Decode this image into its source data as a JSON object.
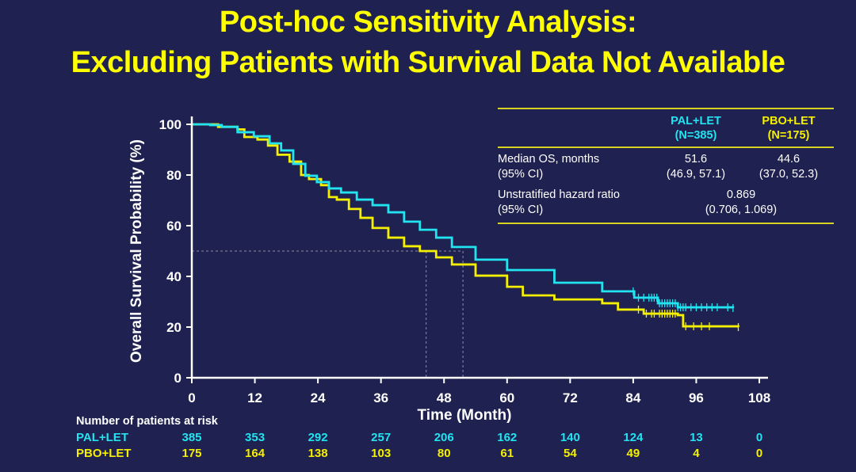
{
  "title": {
    "line1": "Post-hoc Sensitivity Analysis:",
    "line2": "Excluding Patients with Survival Data Not Available"
  },
  "colors": {
    "background": "#1f2150",
    "title": "#ffff00",
    "pal_let": "#22e4f0",
    "pbo_let": "#f5f000",
    "axis": "#ffffff",
    "table_rule": "#d8d220",
    "reference_line": "#8c8ca8"
  },
  "stats_table": {
    "headers": [
      {
        "arm": "PAL+LET",
        "n": "(N=385)"
      },
      {
        "arm": "PBO+LET",
        "n": "(N=175)"
      }
    ],
    "median_os": {
      "label": "Median OS, months",
      "sublabel": "(95% CI)",
      "pal_let": {
        "value": "51.6",
        "ci": "(46.9, 57.1)"
      },
      "pbo_let": {
        "value": "44.6",
        "ci": "(37.0, 52.3)"
      }
    },
    "hazard_ratio": {
      "label": "Unstratified hazard ratio",
      "sublabel": "(95% CI)",
      "value": "0.869",
      "ci": "(0.706, 1.069)"
    }
  },
  "risk_table": {
    "title": "Number of patients at risk",
    "rows": [
      {
        "label": "PAL+LET",
        "values": [
          "385",
          "353",
          "292",
          "257",
          "206",
          "162",
          "140",
          "124",
          "13",
          "0"
        ]
      },
      {
        "label": "PBO+LET",
        "values": [
          "175",
          "164",
          "138",
          "103",
          "80",
          "61",
          "54",
          "49",
          "4",
          "0"
        ]
      }
    ]
  },
  "chart_data": {
    "type": "line",
    "subtype": "kaplan-meier step",
    "title": "Post-hoc Sensitivity Analysis: Excluding Patients with Survival Data Not Available",
    "xlabel": "Time (Month)",
    "ylabel": "Overall Survival Probability (%)",
    "xlim": [
      0,
      108
    ],
    "ylim": [
      0,
      100
    ],
    "xticks": [
      0,
      12,
      24,
      36,
      48,
      60,
      72,
      84,
      96,
      108
    ],
    "yticks": [
      0,
      20,
      40,
      60,
      80,
      100
    ],
    "grid": false,
    "legend": "top-right table",
    "median_reference": {
      "y": 50,
      "x": [
        44.6,
        51.6
      ]
    },
    "series": [
      {
        "name": "PAL+LET",
        "n": 385,
        "points": [
          [
            0,
            100
          ],
          [
            3.5,
            99.7
          ],
          [
            5.7,
            99
          ],
          [
            8.7,
            96.9
          ],
          [
            11.8,
            95.3
          ],
          [
            14.8,
            92.5
          ],
          [
            17,
            89.7
          ],
          [
            19.3,
            84.4
          ],
          [
            21.6,
            79.7
          ],
          [
            23.8,
            77.2
          ],
          [
            26.1,
            74.7
          ],
          [
            28.4,
            73.1
          ],
          [
            31.4,
            70.3
          ],
          [
            34.4,
            68.1
          ],
          [
            37.4,
            65.3
          ],
          [
            40.4,
            61.6
          ],
          [
            43.4,
            58.4
          ],
          [
            46.5,
            55.3
          ],
          [
            49.5,
            51.6
          ],
          [
            54,
            46.6
          ],
          [
            60,
            42.5
          ],
          [
            69,
            37.5
          ],
          [
            78.1,
            34.1
          ],
          [
            84.2,
            31.6
          ],
          [
            88.7,
            29.4
          ],
          [
            92.5,
            27.8
          ],
          [
            103,
            27.5
          ]
        ],
        "censor_marks": [
          84,
          85,
          86,
          87,
          87.5,
          88,
          88.5,
          89,
          89.5,
          90,
          90.5,
          91,
          91.5,
          92,
          92.5,
          93,
          93.5,
          94,
          95,
          96,
          97,
          98,
          99,
          100,
          102,
          103
        ]
      },
      {
        "name": "PBO+LET",
        "n": 175,
        "points": [
          [
            0,
            100
          ],
          [
            5,
            99
          ],
          [
            8.7,
            98
          ],
          [
            10,
            95
          ],
          [
            12.5,
            94
          ],
          [
            14.5,
            91.6
          ],
          [
            16.3,
            88
          ],
          [
            18.6,
            85.3
          ],
          [
            20.8,
            80
          ],
          [
            22.3,
            78.4
          ],
          [
            24.6,
            76
          ],
          [
            26.1,
            71.3
          ],
          [
            27.6,
            70.3
          ],
          [
            29.9,
            66.6
          ],
          [
            32.1,
            63.1
          ],
          [
            34.4,
            59.1
          ],
          [
            37.4,
            55.3
          ],
          [
            40.4,
            51.9
          ],
          [
            43.4,
            50
          ],
          [
            46.5,
            47.5
          ],
          [
            49.5,
            44.7
          ],
          [
            54,
            40.3
          ],
          [
            60,
            35.9
          ],
          [
            63,
            32.5
          ],
          [
            69,
            30.9
          ],
          [
            78.1,
            29.4
          ],
          [
            81.1,
            26.9
          ],
          [
            84.9,
            26.9
          ],
          [
            86,
            25.3
          ],
          [
            92.5,
            24.7
          ],
          [
            93.5,
            20.3
          ],
          [
            104,
            20
          ]
        ],
        "censor_marks": [
          85,
          86.5,
          87.5,
          88,
          89,
          89.5,
          90,
          90.5,
          91,
          91.5,
          92,
          94,
          95.5,
          97,
          98.5,
          104
        ]
      }
    ]
  }
}
